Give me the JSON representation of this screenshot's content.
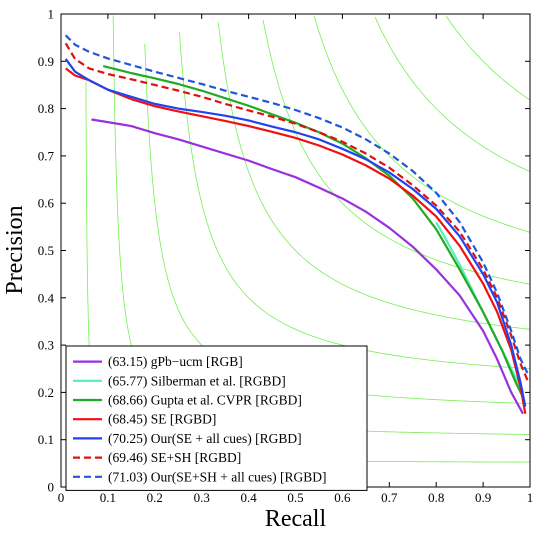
{
  "chart_data": {
    "type": "line",
    "title": "",
    "xlabel": "Recall",
    "ylabel": "Precision",
    "xlim": [
      0,
      1
    ],
    "ylim": [
      0,
      1
    ],
    "x_ticks": [
      "0",
      "0.1",
      "0.2",
      "0.3",
      "0.4",
      "0.5",
      "0.6",
      "0.7",
      "0.8",
      "0.9",
      "1"
    ],
    "y_ticks": [
      "0",
      "0.1",
      "0.2",
      "0.3",
      "0.4",
      "0.5",
      "0.6",
      "0.7",
      "0.8",
      "0.9",
      "1"
    ],
    "grid": false,
    "iso_f_contours": true,
    "iso_f_color": "#77ee55",
    "legend_position": "bottom-left",
    "series": [
      {
        "name": "(63.15) gPb−ucm [RGB]",
        "color": "#9a30dd",
        "dash": "solid",
        "x": [
          0.065,
          0.09,
          0.15,
          0.2,
          0.25,
          0.3,
          0.35,
          0.4,
          0.45,
          0.5,
          0.55,
          0.6,
          0.65,
          0.7,
          0.75,
          0.8,
          0.85,
          0.9,
          0.93,
          0.96,
          0.985
        ],
        "y": [
          0.777,
          0.773,
          0.763,
          0.748,
          0.735,
          0.72,
          0.705,
          0.69,
          0.672,
          0.655,
          0.633,
          0.61,
          0.582,
          0.548,
          0.508,
          0.46,
          0.405,
          0.33,
          0.27,
          0.2,
          0.155
        ]
      },
      {
        "name": "(65.77) Silberman et al. [RGBD]",
        "color": "#55eebb",
        "dash": "solid",
        "x": [
          0.8,
          0.82,
          0.85,
          0.88,
          0.91,
          0.94,
          0.97,
          0.985
        ],
        "y": [
          0.56,
          0.525,
          0.47,
          0.41,
          0.35,
          0.29,
          0.23,
          0.2
        ]
      },
      {
        "name": "(68.66) Gupta et al. CVPR [RGBD]",
        "color": "#22aa22",
        "dash": "solid",
        "x": [
          0.09,
          0.15,
          0.2,
          0.25,
          0.3,
          0.35,
          0.4,
          0.45,
          0.5,
          0.55,
          0.6,
          0.65,
          0.7,
          0.75,
          0.8,
          0.85,
          0.9,
          0.94,
          0.97,
          0.985
        ],
        "y": [
          0.89,
          0.875,
          0.864,
          0.852,
          0.838,
          0.822,
          0.806,
          0.788,
          0.77,
          0.75,
          0.726,
          0.695,
          0.658,
          0.61,
          0.545,
          0.46,
          0.37,
          0.29,
          0.22,
          0.19
        ]
      },
      {
        "name": "(68.45) SE [RGBD]",
        "color": "#ee1111",
        "dash": "solid",
        "x": [
          0.01,
          0.03,
          0.06,
          0.1,
          0.15,
          0.2,
          0.25,
          0.3,
          0.35,
          0.4,
          0.45,
          0.5,
          0.55,
          0.6,
          0.65,
          0.7,
          0.75,
          0.8,
          0.85,
          0.9,
          0.93,
          0.96,
          0.98,
          0.99
        ],
        "y": [
          0.885,
          0.87,
          0.86,
          0.84,
          0.82,
          0.805,
          0.794,
          0.784,
          0.774,
          0.763,
          0.751,
          0.738,
          0.722,
          0.703,
          0.68,
          0.652,
          0.616,
          0.572,
          0.51,
          0.43,
          0.37,
          0.29,
          0.21,
          0.155
        ]
      },
      {
        "name": "(70.25) Our(SE + all cues) [RGBD]",
        "color": "#2244ee",
        "dash": "solid",
        "x": [
          0.01,
          0.03,
          0.06,
          0.1,
          0.15,
          0.2,
          0.25,
          0.3,
          0.35,
          0.4,
          0.45,
          0.5,
          0.55,
          0.6,
          0.65,
          0.7,
          0.75,
          0.8,
          0.85,
          0.9,
          0.93,
          0.96,
          0.98,
          0.99
        ],
        "y": [
          0.905,
          0.878,
          0.86,
          0.84,
          0.825,
          0.81,
          0.8,
          0.793,
          0.785,
          0.775,
          0.762,
          0.75,
          0.735,
          0.715,
          0.693,
          0.665,
          0.63,
          0.588,
          0.53,
          0.45,
          0.39,
          0.3,
          0.22,
          0.17
        ]
      },
      {
        "name": "(69.46) SE+SH [RGBD]",
        "color": "#dd1111",
        "dash": "dashed",
        "x": [
          0.01,
          0.03,
          0.06,
          0.1,
          0.15,
          0.2,
          0.25,
          0.3,
          0.35,
          0.4,
          0.45,
          0.5,
          0.55,
          0.6,
          0.65,
          0.7,
          0.75,
          0.8,
          0.85,
          0.9,
          0.93,
          0.96,
          0.98,
          0.995
        ],
        "y": [
          0.938,
          0.905,
          0.885,
          0.873,
          0.862,
          0.85,
          0.838,
          0.825,
          0.81,
          0.796,
          0.783,
          0.768,
          0.75,
          0.73,
          0.705,
          0.675,
          0.638,
          0.595,
          0.54,
          0.46,
          0.4,
          0.32,
          0.26,
          0.225
        ]
      },
      {
        "name": "(71.03) Our(SE+SH + all cues) [RGBD]",
        "color": "#2255dd",
        "dash": "dashed",
        "x": [
          0.01,
          0.03,
          0.06,
          0.1,
          0.15,
          0.2,
          0.25,
          0.3,
          0.35,
          0.4,
          0.45,
          0.5,
          0.55,
          0.6,
          0.65,
          0.7,
          0.75,
          0.8,
          0.85,
          0.9,
          0.93,
          0.96,
          0.98,
          0.995
        ],
        "y": [
          0.955,
          0.935,
          0.92,
          0.906,
          0.892,
          0.878,
          0.865,
          0.852,
          0.838,
          0.825,
          0.812,
          0.797,
          0.78,
          0.76,
          0.735,
          0.705,
          0.668,
          0.622,
          0.56,
          0.475,
          0.41,
          0.33,
          0.27,
          0.24
        ]
      }
    ]
  }
}
